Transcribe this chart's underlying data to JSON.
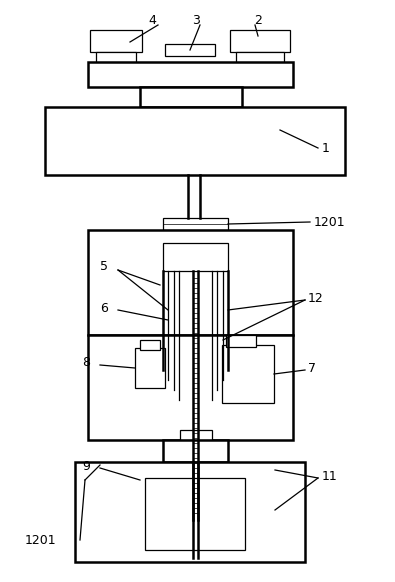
{
  "bg_color": "#ffffff",
  "line_color": "#000000",
  "lw_thick": 1.8,
  "lw_thin": 0.9,
  "lw_hair": 0.5,
  "font_size": 9
}
